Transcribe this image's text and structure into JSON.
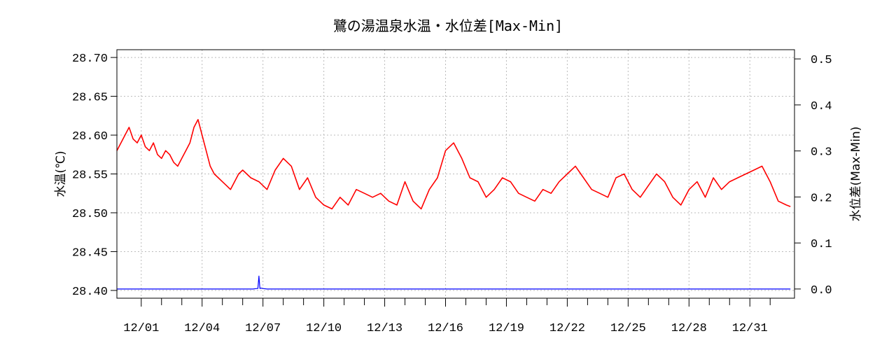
{
  "chart_data": {
    "type": "line",
    "title": "鷺の湯温泉水温・水位差[Max-Min]",
    "ylabel_left": "水温(℃)",
    "ylabel_right": "水位差(Max-Min)",
    "ylim_left": [
      28.39,
      28.71
    ],
    "ylim_right": [
      -0.02,
      0.52
    ],
    "yticks_left": [
      "28.40",
      "28.45",
      "28.50",
      "28.55",
      "28.60",
      "28.65",
      "28.70"
    ],
    "yticks_right": [
      "0.0",
      "0.1",
      "0.2",
      "0.3",
      "0.4",
      "0.5"
    ],
    "xticks": [
      "12/01",
      "12/04",
      "12/07",
      "12/10",
      "12/13",
      "12/16",
      "12/19",
      "12/22",
      "12/25",
      "12/28",
      "12/31"
    ],
    "xlim_days": [
      -1.2,
      32.2
    ],
    "grid": true,
    "colors": {
      "temperature": "#ff0000",
      "water_level": "#0000ff",
      "grid": "#bbbbbb"
    },
    "series": [
      {
        "name": "水温",
        "axis": "left",
        "x_days": [
          -1.2,
          -1.0,
          -0.8,
          -0.6,
          -0.4,
          -0.2,
          0.0,
          0.2,
          0.4,
          0.6,
          0.8,
          1.0,
          1.2,
          1.4,
          1.6,
          1.8,
          2.0,
          2.2,
          2.4,
          2.6,
          2.8,
          3.0,
          3.2,
          3.4,
          3.6,
          3.8,
          4.0,
          4.2,
          4.4,
          4.6,
          4.8,
          5.0,
          5.4,
          5.8,
          6.2,
          6.6,
          7.0,
          7.4,
          7.8,
          8.2,
          8.6,
          9.0,
          9.4,
          9.8,
          10.2,
          10.6,
          11.0,
          11.4,
          11.8,
          12.2,
          12.6,
          13.0,
          13.4,
          13.8,
          14.2,
          14.6,
          15.0,
          15.4,
          15.8,
          16.2,
          16.6,
          17.0,
          17.4,
          17.8,
          18.2,
          18.6,
          19.0,
          19.4,
          19.8,
          20.2,
          20.6,
          21.0,
          21.4,
          21.8,
          22.2,
          22.6,
          23.0,
          23.4,
          23.8,
          24.2,
          24.6,
          25.0,
          25.4,
          25.8,
          26.2,
          26.6,
          27.0,
          27.4,
          27.8,
          28.2,
          28.6,
          29.0,
          29.4,
          29.8,
          30.2,
          30.6,
          31.0,
          31.4,
          31.8,
          32.0
        ],
        "values": [
          28.58,
          28.59,
          28.6,
          28.61,
          28.595,
          28.59,
          28.6,
          28.585,
          28.58,
          28.59,
          28.575,
          28.57,
          28.58,
          28.575,
          28.565,
          28.56,
          28.57,
          28.58,
          28.59,
          28.61,
          28.62,
          28.6,
          28.58,
          28.56,
          28.55,
          28.545,
          28.54,
          28.535,
          28.53,
          28.54,
          28.55,
          28.555,
          28.545,
          28.54,
          28.53,
          28.555,
          28.57,
          28.56,
          28.53,
          28.545,
          28.52,
          28.51,
          28.505,
          28.52,
          28.51,
          28.53,
          28.525,
          28.52,
          28.525,
          28.515,
          28.51,
          28.54,
          28.515,
          28.505,
          28.53,
          28.545,
          28.58,
          28.59,
          28.57,
          28.545,
          28.54,
          28.52,
          28.53,
          28.545,
          28.54,
          28.525,
          28.52,
          28.515,
          28.53,
          28.525,
          28.54,
          28.55,
          28.56,
          28.545,
          28.53,
          28.525,
          28.52,
          28.545,
          28.55,
          28.53,
          28.52,
          28.535,
          28.55,
          28.54,
          28.52,
          28.51,
          28.53,
          28.54,
          28.52,
          28.545,
          28.53,
          28.54,
          28.545,
          28.55,
          28.555,
          28.56,
          28.54,
          28.515,
          28.51,
          28.508
        ]
      },
      {
        "name": "水位差",
        "axis": "right",
        "x_days": [
          -1.2,
          5.5,
          5.7,
          5.75,
          5.8,
          5.85,
          5.9,
          6.0,
          6.2,
          32.0
        ],
        "values": [
          0.0,
          0.0,
          0.001,
          0.001,
          0.028,
          0.001,
          0.002,
          0.001,
          0.0,
          0.0
        ]
      }
    ]
  }
}
